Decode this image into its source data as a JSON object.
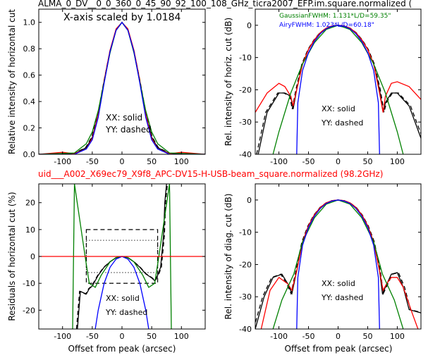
{
  "page": {
    "top_title": "ALMA_0_DV__0_0_360_0_45_90_92_100_108_GHz_ticra2007_EFP.im.square.normalized (",
    "mid_title": "uid___A002_X69ec79_X9f8_APC-DV15-H-USB-beam_square.normalized (98.2GHz)",
    "mid_title_color": "#ff0000",
    "xscale_note": "X-axis scaled by 1.0184",
    "legend_gauss": "GaussianFWHM: 1.131*L/D=59.35\"",
    "legend_airy": "AiryFWHM: 1.023*L/D=60.18\"",
    "legend_gauss_color": "#008000",
    "legend_airy_color": "#0000ff",
    "xx_note": "XX: solid",
    "yy_note": "YY: dashed",
    "xlabel": "Offset from peak (arcsec)"
  },
  "chart_data": [
    {
      "id": "top-left",
      "type": "line",
      "ylabel": "Relative intensity of horizontal cut",
      "xlim": [
        -140,
        140
      ],
      "ylim": [
        0,
        1.1
      ],
      "xticks": [
        -100,
        -50,
        0,
        50,
        100
      ],
      "yticks": [
        0.0,
        0.2,
        0.4,
        0.6,
        0.8,
        1.0
      ],
      "series": [
        {
          "model": "data",
          "color": "#000000",
          "x": [
            -140,
            -100,
            -80,
            -60,
            -50,
            -40,
            -30,
            -20,
            -10,
            0,
            10,
            20,
            30,
            40,
            50,
            60,
            80,
            100,
            140
          ],
          "y": [
            0,
            0.005,
            0.005,
            0.05,
            0.13,
            0.3,
            0.55,
            0.78,
            0.94,
            1.0,
            0.94,
            0.78,
            0.55,
            0.3,
            0.13,
            0.05,
            0.005,
            0.005,
            0
          ]
        },
        {
          "model": "data-red",
          "color": "#ff0000",
          "x": [
            -140,
            -100,
            -80,
            -60,
            -50,
            -40,
            -30,
            -20,
            -10,
            0,
            10,
            20,
            30,
            40,
            50,
            60,
            80,
            100,
            140
          ],
          "y": [
            0,
            0.015,
            0.005,
            0.04,
            0.12,
            0.3,
            0.56,
            0.79,
            0.95,
            1.0,
            0.95,
            0.79,
            0.56,
            0.3,
            0.12,
            0.04,
            0.005,
            0.015,
            0
          ]
        },
        {
          "model": "gaussian",
          "color": "#008000",
          "x": [
            -140,
            -80,
            -60,
            -50,
            -40,
            -30,
            -20,
            -10,
            0,
            10,
            20,
            30,
            40,
            50,
            60,
            80,
            140
          ],
          "y": [
            0,
            0.01,
            0.08,
            0.17,
            0.33,
            0.55,
            0.77,
            0.94,
            1.0,
            0.94,
            0.77,
            0.55,
            0.33,
            0.17,
            0.08,
            0.01,
            0
          ]
        },
        {
          "model": "airy",
          "color": "#0000ff",
          "x": [
            -140,
            -80,
            -60,
            -50,
            -40,
            -30,
            -20,
            -10,
            0,
            10,
            20,
            30,
            40,
            50,
            60,
            80,
            140
          ],
          "y": [
            0,
            0.0,
            0.04,
            0.11,
            0.28,
            0.54,
            0.78,
            0.94,
            1.0,
            0.94,
            0.78,
            0.54,
            0.28,
            0.11,
            0.04,
            0.0,
            0
          ]
        }
      ]
    },
    {
      "id": "top-right",
      "type": "line",
      "ylabel": "Rel. intensity of horiz. cut (dB)",
      "xlim": [
        -140,
        140
      ],
      "ylim": [
        -40,
        5
      ],
      "xticks": [
        -100,
        -50,
        0,
        50,
        100
      ],
      "yticks": [
        0,
        -10,
        -20,
        -30,
        -40
      ],
      "series": [
        {
          "model": "data",
          "color": "#000000",
          "x": [
            -135,
            -120,
            -100,
            -90,
            -80,
            -76,
            -70,
            -60,
            -50,
            -40,
            -30,
            -20,
            -10,
            0,
            10,
            20,
            30,
            40,
            50,
            60,
            70,
            76,
            80,
            90,
            100,
            120,
            140
          ],
          "y": [
            -40,
            -27,
            -21,
            -21,
            -22,
            -26,
            -20,
            -12,
            -7.5,
            -4.5,
            -2.3,
            -0.9,
            -0.2,
            0,
            -0.2,
            -0.9,
            -2.3,
            -4.5,
            -7.5,
            -12,
            -20,
            -27,
            -24,
            -21,
            -21,
            -25,
            -35
          ]
        },
        {
          "model": "data-red",
          "color": "#ff0000",
          "x": [
            -140,
            -120,
            -100,
            -90,
            -80,
            -76,
            -70,
            -60,
            -50,
            -40,
            -30,
            -20,
            -10,
            0,
            10,
            20,
            30,
            40,
            50,
            60,
            70,
            76,
            80,
            90,
            100,
            120,
            140
          ],
          "y": [
            -27,
            -21,
            -18,
            -19,
            -22,
            -25,
            -20,
            -12,
            -7.5,
            -4.5,
            -2.3,
            -0.9,
            -0.2,
            0,
            -0.2,
            -0.9,
            -2.3,
            -4.5,
            -7.5,
            -12,
            -21,
            -27,
            -22,
            -18,
            -17.5,
            -19,
            -23
          ]
        },
        {
          "model": "gaussian",
          "color": "#008000",
          "x": [
            -110,
            -100,
            -80,
            -60,
            -40,
            -20,
            0,
            20,
            40,
            60,
            80,
            100,
            110
          ],
          "y": [
            -40,
            -33,
            -21,
            -12,
            -5.4,
            -1.3,
            0,
            -1.3,
            -5.4,
            -12,
            -21,
            -33,
            -40
          ]
        },
        {
          "model": "airy",
          "color": "#0000ff",
          "x": [
            -70,
            -68,
            -60,
            -50,
            -40,
            -30,
            -20,
            -10,
            0,
            10,
            20,
            30,
            40,
            50,
            60,
            68,
            70
          ],
          "y": [
            -40,
            -24,
            -14,
            -8.5,
            -5,
            -2.6,
            -1.1,
            -0.3,
            0,
            -0.3,
            -1.1,
            -2.6,
            -5,
            -8.5,
            -14,
            -24,
            -40
          ]
        }
      ]
    },
    {
      "id": "bottom-left",
      "type": "line",
      "ylabel": "Residuals of horizontal cut (%)",
      "xlim": [
        -140,
        140
      ],
      "ylim": [
        -27,
        27
      ],
      "xticks": [
        -100,
        -50,
        0,
        50,
        100
      ],
      "yticks": [
        20,
        10,
        0,
        -10,
        -20
      ],
      "series": [
        {
          "model": "data",
          "color": "#000000",
          "x": [
            -75,
            -70,
            -60,
            -55,
            -50,
            -40,
            -30,
            -20,
            -10,
            0,
            10,
            20,
            30,
            40,
            50,
            55,
            60,
            65,
            70,
            72,
            75
          ],
          "y": [
            -27,
            -13,
            -14,
            -12,
            -11,
            -7,
            -4,
            -2,
            -0.5,
            0,
            -0.5,
            -2,
            -4,
            -6.5,
            -8,
            -9,
            -7,
            -4,
            8,
            20,
            27
          ]
        },
        {
          "model": "gaussian",
          "color": "#008000",
          "x": [
            -83,
            -80,
            -70,
            -62,
            -55,
            -45,
            -35,
            -20,
            -10,
            0,
            10,
            20,
            35,
            45,
            55,
            62,
            70,
            80,
            83
          ],
          "y": [
            -27,
            27,
            12,
            0,
            -10,
            -11.5,
            -7,
            -2,
            -0.4,
            0,
            -0.4,
            -2,
            -7,
            -11.5,
            -10,
            0,
            12,
            27,
            -27
          ]
        },
        {
          "model": "airy",
          "color": "#0000ff",
          "x": [
            -45,
            -40,
            -30,
            -20,
            -10,
            0,
            10,
            20,
            30,
            40,
            45
          ],
          "y": [
            -27,
            -20,
            -10,
            -4,
            -1,
            0,
            -1,
            -4,
            -10,
            -20,
            -27
          ]
        },
        {
          "model": "zero",
          "color": "#ff0000",
          "x": [
            -140,
            140
          ],
          "y": [
            0,
            0
          ]
        }
      ],
      "bands": {
        "inner": [
          -60,
          60,
          -10,
          10
        ],
        "outer": [
          -60,
          60,
          -6,
          6
        ]
      }
    },
    {
      "id": "bottom-right",
      "type": "line",
      "ylabel": "Rel. intensity of diag. cut (dB)",
      "xlim": [
        -140,
        140
      ],
      "ylim": [
        -40,
        5
      ],
      "xticks": [
        -100,
        -50,
        0,
        50,
        100
      ],
      "yticks": [
        0,
        -10,
        -20,
        -30,
        -40
      ],
      "series": [
        {
          "model": "data",
          "color": "#000000",
          "x": [
            -140,
            -125,
            -110,
            -95,
            -85,
            -78,
            -70,
            -60,
            -50,
            -40,
            -30,
            -20,
            -10,
            0,
            10,
            20,
            30,
            40,
            50,
            60,
            70,
            75,
            80,
            90,
            100,
            110,
            120,
            140
          ],
          "y": [
            -40,
            -30,
            -24,
            -23,
            -26,
            -29,
            -22,
            -13,
            -8,
            -4.6,
            -2.3,
            -0.9,
            -0.2,
            0,
            -0.2,
            -0.9,
            -2.3,
            -4.6,
            -8,
            -13,
            -22,
            -29,
            -27,
            -23,
            -22.5,
            -27,
            -34,
            -35
          ]
        },
        {
          "model": "data-red",
          "color": "#ff0000",
          "x": [
            -130,
            -115,
            -100,
            -85,
            -78,
            -70,
            -60,
            -50,
            -40,
            -30,
            -20,
            -10,
            0,
            10,
            20,
            30,
            40,
            50,
            60,
            70,
            76,
            82,
            90,
            100,
            110,
            125,
            135
          ],
          "y": [
            -40,
            -28,
            -24,
            -26,
            -28,
            -22,
            -13,
            -8,
            -4.6,
            -2.3,
            -0.9,
            -0.2,
            0,
            -0.2,
            -0.9,
            -2.3,
            -4.6,
            -8,
            -13,
            -22,
            -28,
            -26,
            -24,
            -24,
            -27,
            -35,
            -40
          ]
        },
        {
          "model": "gaussian",
          "color": "#008000",
          "x": [
            -110,
            -95,
            -85,
            -75,
            -60,
            -40,
            -20,
            0,
            20,
            40,
            60,
            75,
            85,
            95,
            110
          ],
          "y": [
            -40,
            -31,
            -27,
            -23,
            -13,
            -5.5,
            -1.3,
            0,
            -1.3,
            -5.5,
            -13,
            -23,
            -27,
            -31,
            -40
          ]
        },
        {
          "model": "airy",
          "color": "#0000ff",
          "x": [
            -70,
            -68,
            -60,
            -50,
            -40,
            -30,
            -20,
            -10,
            0,
            10,
            20,
            30,
            40,
            50,
            60,
            68,
            70
          ],
          "y": [
            -40,
            -24,
            -14,
            -8.5,
            -5,
            -2.6,
            -1.1,
            -0.3,
            0,
            -0.3,
            -1.1,
            -2.6,
            -5,
            -8.5,
            -14,
            -24,
            -40
          ]
        }
      ]
    }
  ]
}
